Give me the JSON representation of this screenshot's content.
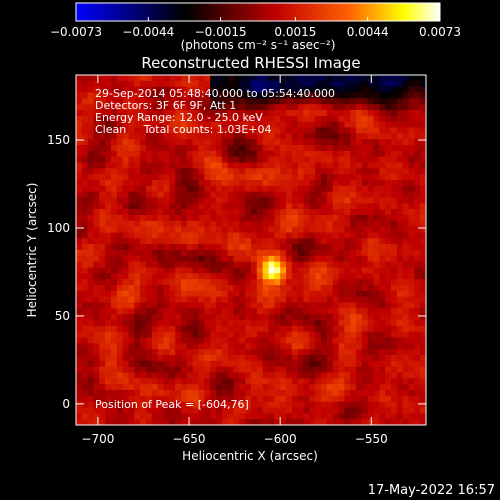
{
  "chart_data": {
    "type": "heatmap",
    "title": "Reconstructed RHESSI Image",
    "xlabel": "Heliocentric X (arcsec)",
    "ylabel": "Heliocentric Y (arcsec)",
    "colorbar": {
      "ticks": [
        "-0.0073",
        "-0.0044",
        "-0.0015",
        "0.0015",
        "0.0044",
        "0.0073"
      ],
      "range": [
        -0.0073,
        0.0073
      ],
      "unit_label": "(photons cm⁻² s⁻¹ asec⁻²)",
      "colormap": [
        "#0000ff",
        "#000000",
        "#c00000",
        "#ff6000",
        "#ffff00",
        "#ffffff"
      ]
    },
    "xlim": [
      -712,
      -520
    ],
    "ylim": [
      -12,
      187
    ],
    "x_ticks": [
      -700,
      -650,
      -600,
      -550
    ],
    "y_ticks": [
      0,
      50,
      100,
      150
    ],
    "peak": {
      "x": -604,
      "y": 76
    },
    "annotations": [
      "29-Sep-2014 05:48:40.000 to 05:54:40.000",
      "Detectors: 3F 6F 9F, Att 1",
      "Energy Range: 12.0 - 25.0 keV",
      "Clean     Total counts: 1.03E+04"
    ],
    "peak_label": "Position of Peak = [-604,76]"
  },
  "footer": {
    "timestamp": "17-May-2022 16:57"
  }
}
